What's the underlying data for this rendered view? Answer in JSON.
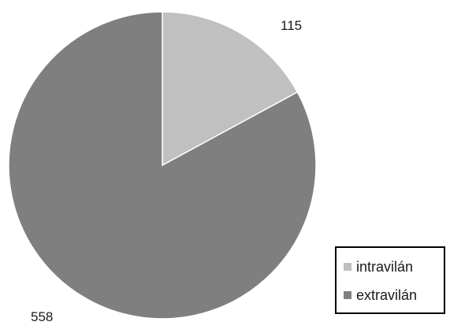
{
  "chart_data": {
    "type": "pie",
    "categories": [
      "intravilán",
      "extravilán"
    ],
    "values": [
      115,
      558
    ],
    "data_labels": [
      "115",
      "558"
    ],
    "colors": [
      "#c0c0c0",
      "#7f7f7f"
    ],
    "start_angle": "12 o'clock",
    "direction": "clockwise",
    "legend": "bottom-right",
    "title": ""
  }
}
